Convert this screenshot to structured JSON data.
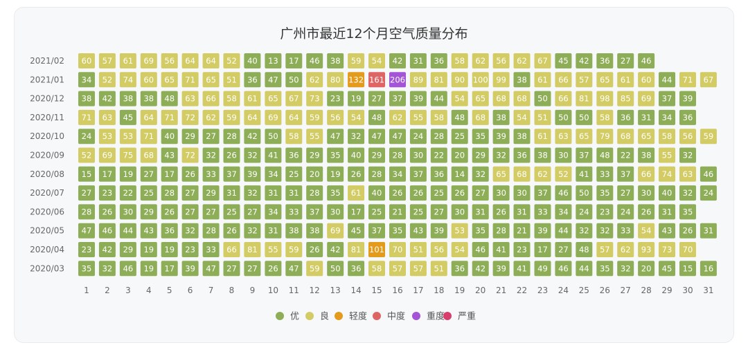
{
  "chart_data": {
    "type": "heatmap",
    "title": "广州市最近12个月空气质量分布",
    "days": [
      "1",
      "2",
      "3",
      "4",
      "5",
      "6",
      "7",
      "8",
      "9",
      "10",
      "11",
      "12",
      "13",
      "14",
      "15",
      "16",
      "17",
      "18",
      "19",
      "20",
      "21",
      "22",
      "23",
      "24",
      "25",
      "26",
      "27",
      "28",
      "29",
      "30",
      "31"
    ],
    "levels": [
      {
        "name": "优",
        "color": "#8dae57",
        "max": 50
      },
      {
        "name": "良",
        "color": "#d3cb63",
        "max": 100
      },
      {
        "name": "轻度",
        "color": "#e49a1b",
        "max": 150
      },
      {
        "name": "中度",
        "color": "#df6464",
        "max": 200
      },
      {
        "name": "重度",
        "color": "#a454d6",
        "max": 300
      },
      {
        "name": "严重",
        "color": "#d93d6c",
        "max": 500
      }
    ],
    "months": [
      {
        "label": "2021/02",
        "values": [
          60,
          57,
          61,
          69,
          56,
          64,
          64,
          52,
          40,
          13,
          17,
          46,
          38,
          59,
          54,
          42,
          31,
          36,
          58,
          62,
          56,
          62,
          67,
          45,
          42,
          36,
          27,
          46
        ]
      },
      {
        "label": "2021/01",
        "values": [
          34,
          52,
          74,
          60,
          65,
          71,
          65,
          51,
          36,
          47,
          50,
          62,
          80,
          132,
          161,
          206,
          89,
          81,
          90,
          100,
          99,
          38,
          61,
          66,
          57,
          65,
          61,
          60,
          44,
          71,
          67
        ]
      },
      {
        "label": "2020/12",
        "values": [
          38,
          42,
          38,
          38,
          48,
          63,
          66,
          58,
          61,
          65,
          67,
          73,
          23,
          19,
          27,
          37,
          39,
          44,
          54,
          65,
          68,
          68,
          50,
          66,
          81,
          98,
          85,
          69,
          37,
          39
        ]
      },
      {
        "label": "2020/11",
        "values": [
          71,
          63,
          45,
          64,
          71,
          72,
          62,
          59,
          64,
          69,
          64,
          59,
          56,
          54,
          48,
          62,
          55,
          58,
          48,
          68,
          38,
          54,
          51,
          50,
          50,
          58,
          36,
          31,
          34,
          36
        ]
      },
      {
        "label": "2020/10",
        "values": [
          24,
          53,
          53,
          71,
          40,
          29,
          27,
          28,
          42,
          50,
          58,
          55,
          47,
          32,
          47,
          47,
          24,
          28,
          25,
          35,
          39,
          38,
          61,
          63,
          65,
          79,
          68,
          65,
          58,
          56,
          59
        ]
      },
      {
        "label": "2020/09",
        "values": [
          52,
          69,
          75,
          68,
          43,
          72,
          32,
          26,
          32,
          41,
          36,
          29,
          35,
          40,
          29,
          28,
          30,
          22,
          20,
          29,
          32,
          36,
          38,
          30,
          37,
          48,
          22,
          38,
          55,
          32
        ]
      },
      {
        "label": "2020/08",
        "values": [
          15,
          17,
          19,
          27,
          17,
          26,
          33,
          37,
          39,
          34,
          25,
          20,
          19,
          26,
          28,
          34,
          37,
          36,
          14,
          32,
          65,
          68,
          62,
          52,
          41,
          33,
          37,
          66,
          74,
          63,
          46
        ]
      },
      {
        "label": "2020/07",
        "values": [
          27,
          23,
          22,
          25,
          28,
          27,
          29,
          31,
          32,
          31,
          31,
          28,
          35,
          61,
          40,
          26,
          26,
          25,
          26,
          27,
          30,
          30,
          37,
          46,
          50,
          35,
          27,
          30,
          40,
          32,
          24
        ]
      },
      {
        "label": "2020/06",
        "values": [
          28,
          26,
          30,
          29,
          26,
          27,
          27,
          25,
          27,
          34,
          33,
          37,
          30,
          17,
          25,
          21,
          25,
          27,
          30,
          31,
          26,
          31,
          33,
          34,
          24,
          23,
          24,
          26,
          31,
          35
        ]
      },
      {
        "label": "2020/05",
        "values": [
          47,
          46,
          44,
          43,
          36,
          32,
          28,
          26,
          32,
          31,
          38,
          38,
          69,
          45,
          37,
          35,
          43,
          39,
          53,
          35,
          28,
          21,
          39,
          44,
          32,
          32,
          33,
          54,
          43,
          26,
          31
        ]
      },
      {
        "label": "2020/04",
        "values": [
          23,
          42,
          29,
          19,
          19,
          23,
          33,
          66,
          81,
          55,
          59,
          26,
          42,
          81,
          101,
          70,
          51,
          56,
          54,
          46,
          41,
          23,
          17,
          27,
          48,
          57,
          62,
          93,
          73,
          70
        ]
      },
      {
        "label": "2020/03",
        "values": [
          35,
          32,
          46,
          19,
          17,
          39,
          47,
          27,
          27,
          26,
          47,
          59,
          50,
          36,
          58,
          57,
          57,
          51,
          36,
          42,
          39,
          41,
          49,
          46,
          44,
          35,
          32,
          20,
          45,
          15,
          16
        ]
      }
    ]
  }
}
